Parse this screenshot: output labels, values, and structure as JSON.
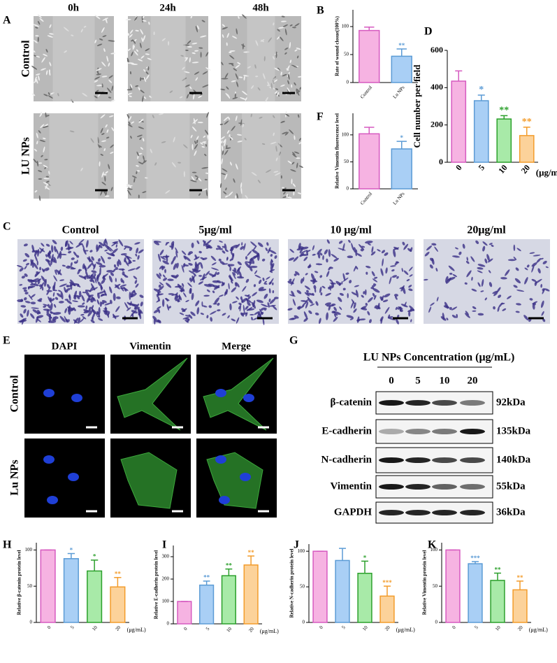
{
  "panel_labels": [
    "A",
    "B",
    "C",
    "D",
    "E",
    "F",
    "G",
    "H",
    "I",
    "J",
    "K"
  ],
  "panel_a": {
    "columns": [
      "0h",
      "24h",
      "48h"
    ],
    "rows": [
      "Control",
      "LU NPs"
    ]
  },
  "panel_c": {
    "columns": [
      "Control",
      "5μg/ml",
      "10 μg/ml",
      "20μg/ml"
    ]
  },
  "panel_e": {
    "columns": [
      "DAPI",
      "Vimentin",
      "Merge"
    ],
    "rows": [
      "Control",
      "Lu NPs"
    ]
  },
  "panel_g": {
    "title": "LU NPs Concentration (μg/mL)",
    "lanes": [
      "0",
      "5",
      "10",
      "20"
    ],
    "proteins": [
      "β-catenin",
      "E-cadherin",
      "N-cadherin",
      "Vimentin",
      "GAPDH"
    ],
    "sizes": [
      "92kDa",
      "135kDa",
      "140kDa",
      "55kDa",
      "36kDa"
    ]
  },
  "chart_data": [
    {
      "type": "bar",
      "y_label": "Rate of wound closue(100%)",
      "categories": [
        "Control",
        "Lu NPs"
      ],
      "values": [
        93,
        47
      ],
      "errors": [
        6,
        13
      ],
      "significance": [
        null,
        "**"
      ],
      "colors": [
        "#f6b3e2",
        "#a9cff5"
      ],
      "edge_colors": [
        "#d65ac0",
        "#5b9bd5"
      ],
      "ylim": [
        0,
        130
      ],
      "yticks": [
        0,
        50,
        100
      ]
    },
    {
      "type": "bar",
      "y_label": "Cell number per field",
      "categories": [
        "0",
        "5",
        "10",
        "20"
      ],
      "x_unit": "(μg/mL)",
      "values": [
        435,
        330,
        232,
        143
      ],
      "errors": [
        55,
        30,
        18,
        45
      ],
      "significance": [
        null,
        "*",
        "**",
        "**"
      ],
      "colors": [
        "#f6b3e2",
        "#a9cff5",
        "#a8eaa8",
        "#fcd29a"
      ],
      "edge_colors": [
        "#d65ac0",
        "#5b9bd5",
        "#2ca02c",
        "#f39c2b"
      ],
      "ylim": [
        0,
        600
      ],
      "yticks": [
        0,
        200,
        400,
        600
      ]
    },
    {
      "type": "bar",
      "y_label": "Relative Vimentin fluorescence level",
      "categories": [
        "Control",
        "Lu NPs"
      ],
      "values": [
        102,
        74
      ],
      "errors": [
        12,
        14
      ],
      "significance": [
        null,
        "*"
      ],
      "colors": [
        "#f6b3e2",
        "#a9cff5"
      ],
      "edge_colors": [
        "#d65ac0",
        "#5b9bd5"
      ],
      "ylim": [
        0,
        140
      ],
      "yticks": [
        0,
        50,
        100
      ]
    },
    {
      "type": "bar",
      "y_label": "Relative β-catenin protein level",
      "categories": [
        "0",
        "5",
        "10",
        "20"
      ],
      "x_unit": "(μg/mL)",
      "values": [
        100,
        88,
        71,
        49
      ],
      "errors": [
        0,
        7,
        15,
        13
      ],
      "significance": [
        null,
        "*",
        "*",
        "**"
      ],
      "colors": [
        "#f6b3e2",
        "#a9cff5",
        "#a8eaa8",
        "#fcd29a"
      ],
      "edge_colors": [
        "#d65ac0",
        "#5b9bd5",
        "#2ca02c",
        "#f39c2b"
      ],
      "ylim": [
        0,
        110
      ],
      "yticks": [
        0,
        50,
        100
      ]
    },
    {
      "type": "bar",
      "y_label": "Relative E-cadherin protein level",
      "categories": [
        "0",
        "5",
        "10",
        "20"
      ],
      "x_unit": "(μg/mL)",
      "values": [
        100,
        173,
        215,
        263
      ],
      "errors": [
        0,
        18,
        30,
        40
      ],
      "significance": [
        null,
        "**",
        "**",
        "**"
      ],
      "colors": [
        "#f6b3e2",
        "#a9cff5",
        "#a8eaa8",
        "#fcd29a"
      ],
      "edge_colors": [
        "#d65ac0",
        "#5b9bd5",
        "#2ca02c",
        "#f39c2b"
      ],
      "ylim": [
        0,
        350
      ],
      "yticks": [
        0,
        100,
        200,
        300
      ]
    },
    {
      "type": "bar",
      "y_label": "Relative N-cadherin protein level",
      "categories": [
        "0",
        "5",
        "10",
        "20"
      ],
      "x_unit": "(μg/mL)",
      "values": [
        100,
        87,
        69,
        37
      ],
      "errors": [
        0,
        17,
        17,
        14
      ],
      "significance": [
        null,
        null,
        "*",
        "***"
      ],
      "colors": [
        "#f6b3e2",
        "#a9cff5",
        "#a8eaa8",
        "#fcd29a"
      ],
      "edge_colors": [
        "#d65ac0",
        "#5b9bd5",
        "#2ca02c",
        "#f39c2b"
      ],
      "ylim": [
        0,
        110
      ],
      "yticks": [
        0,
        50,
        100
      ]
    },
    {
      "type": "bar",
      "y_label": "Relative Vimentin protein level",
      "categories": [
        "0",
        "5",
        "10",
        "20"
      ],
      "x_unit": "(μg/mL)",
      "values": [
        100,
        81,
        58,
        45
      ],
      "errors": [
        0,
        3,
        10,
        12
      ],
      "significance": [
        null,
        "***",
        "**",
        "**"
      ],
      "colors": [
        "#f6b3e2",
        "#a9cff5",
        "#a8eaa8",
        "#fcd29a"
      ],
      "edge_colors": [
        "#d65ac0",
        "#5b9bd5",
        "#2ca02c",
        "#f39c2b"
      ],
      "ylim": [
        0,
        110
      ],
      "yticks": [
        0,
        50,
        100
      ]
    }
  ]
}
